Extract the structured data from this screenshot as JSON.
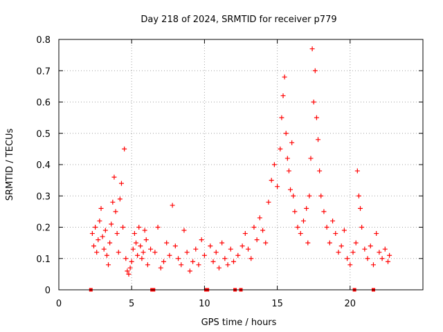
{
  "chart_data": {
    "type": "scatter",
    "title": "Day 218 of 2024, SRMTID for receiver p779",
    "xlabel": "GPS time / hours",
    "ylabel": "SRMTID / TECUs",
    "xlim": [
      0,
      25
    ],
    "ylim": [
      0,
      0.8
    ],
    "x_ticks": [
      0,
      5,
      10,
      15,
      20
    ],
    "x_tick_labels": [
      "0",
      "5",
      "10",
      "15",
      "20"
    ],
    "y_ticks": [
      0,
      0.1,
      0.2,
      0.3,
      0.4,
      0.5,
      0.6,
      0.7,
      0.8
    ],
    "y_tick_labels": [
      "0",
      "0.1",
      "0.2",
      "0.3",
      "0.4",
      "0.5",
      "0.6",
      "0.7",
      "0.8"
    ],
    "grid": true,
    "marker": "+",
    "series_color": "#ff0000",
    "baseline_markers_x": [
      2.2,
      6.4,
      6.5,
      10.1,
      10.2,
      12.1,
      12.5,
      20.3,
      21.6
    ],
    "series": [
      {
        "name": "SRMTID",
        "points": [
          [
            2.3,
            0.18
          ],
          [
            2.4,
            0.14
          ],
          [
            2.5,
            0.2
          ],
          [
            2.6,
            0.12
          ],
          [
            2.7,
            0.16
          ],
          [
            2.8,
            0.22
          ],
          [
            2.9,
            0.26
          ],
          [
            3.0,
            0.17
          ],
          [
            3.1,
            0.13
          ],
          [
            3.2,
            0.19
          ],
          [
            3.3,
            0.11
          ],
          [
            3.4,
            0.08
          ],
          [
            3.5,
            0.15
          ],
          [
            3.6,
            0.21
          ],
          [
            3.7,
            0.28
          ],
          [
            3.8,
            0.36
          ],
          [
            3.9,
            0.25
          ],
          [
            4.0,
            0.18
          ],
          [
            4.1,
            0.12
          ],
          [
            4.2,
            0.29
          ],
          [
            4.3,
            0.34
          ],
          [
            4.4,
            0.2
          ],
          [
            4.5,
            0.45
          ],
          [
            4.6,
            0.1
          ],
          [
            4.7,
            0.06
          ],
          [
            4.8,
            0.05
          ],
          [
            4.9,
            0.07
          ],
          [
            5.0,
            0.09
          ],
          [
            5.1,
            0.13
          ],
          [
            5.2,
            0.18
          ],
          [
            5.3,
            0.15
          ],
          [
            5.4,
            0.11
          ],
          [
            5.5,
            0.2
          ],
          [
            5.6,
            0.14
          ],
          [
            5.7,
            0.1
          ],
          [
            5.8,
            0.12
          ],
          [
            5.9,
            0.19
          ],
          [
            6.0,
            0.16
          ],
          [
            6.1,
            0.08
          ],
          [
            6.3,
            0.13
          ],
          [
            6.6,
            0.12
          ],
          [
            6.8,
            0.2
          ],
          [
            7.0,
            0.07
          ],
          [
            7.2,
            0.09
          ],
          [
            7.4,
            0.15
          ],
          [
            7.6,
            0.11
          ],
          [
            7.8,
            0.27
          ],
          [
            8.0,
            0.14
          ],
          [
            8.2,
            0.1
          ],
          [
            8.4,
            0.08
          ],
          [
            8.6,
            0.19
          ],
          [
            8.8,
            0.12
          ],
          [
            9.0,
            0.06
          ],
          [
            9.2,
            0.09
          ],
          [
            9.4,
            0.13
          ],
          [
            9.6,
            0.08
          ],
          [
            9.8,
            0.16
          ],
          [
            10.0,
            0.11
          ],
          [
            10.4,
            0.14
          ],
          [
            10.6,
            0.09
          ],
          [
            10.8,
            0.12
          ],
          [
            11.0,
            0.07
          ],
          [
            11.2,
            0.15
          ],
          [
            11.4,
            0.1
          ],
          [
            11.6,
            0.08
          ],
          [
            11.8,
            0.13
          ],
          [
            12.0,
            0.09
          ],
          [
            12.3,
            0.11
          ],
          [
            12.6,
            0.14
          ],
          [
            12.8,
            0.18
          ],
          [
            13.0,
            0.13
          ],
          [
            13.2,
            0.1
          ],
          [
            13.4,
            0.2
          ],
          [
            13.6,
            0.16
          ],
          [
            13.8,
            0.23
          ],
          [
            14.0,
            0.19
          ],
          [
            14.2,
            0.15
          ],
          [
            14.4,
            0.28
          ],
          [
            14.6,
            0.35
          ],
          [
            14.8,
            0.4
          ],
          [
            15.0,
            0.33
          ],
          [
            15.2,
            0.45
          ],
          [
            15.3,
            0.55
          ],
          [
            15.4,
            0.62
          ],
          [
            15.5,
            0.68
          ],
          [
            15.6,
            0.5
          ],
          [
            15.7,
            0.42
          ],
          [
            15.8,
            0.38
          ],
          [
            15.9,
            0.32
          ],
          [
            16.0,
            0.47
          ],
          [
            16.1,
            0.3
          ],
          [
            16.2,
            0.25
          ],
          [
            16.4,
            0.2
          ],
          [
            16.6,
            0.18
          ],
          [
            16.8,
            0.22
          ],
          [
            17.0,
            0.26
          ],
          [
            17.1,
            0.15
          ],
          [
            17.2,
            0.3
          ],
          [
            17.3,
            0.42
          ],
          [
            17.4,
            0.77
          ],
          [
            17.5,
            0.6
          ],
          [
            17.6,
            0.7
          ],
          [
            17.7,
            0.55
          ],
          [
            17.8,
            0.48
          ],
          [
            17.9,
            0.38
          ],
          [
            18.0,
            0.3
          ],
          [
            18.2,
            0.25
          ],
          [
            18.4,
            0.2
          ],
          [
            18.6,
            0.15
          ],
          [
            18.8,
            0.22
          ],
          [
            19.0,
            0.18
          ],
          [
            19.2,
            0.12
          ],
          [
            19.4,
            0.14
          ],
          [
            19.6,
            0.19
          ],
          [
            19.8,
            0.1
          ],
          [
            20.0,
            0.08
          ],
          [
            20.2,
            0.12
          ],
          [
            20.4,
            0.15
          ],
          [
            20.5,
            0.38
          ],
          [
            20.6,
            0.3
          ],
          [
            20.7,
            0.26
          ],
          [
            20.8,
            0.2
          ],
          [
            21.0,
            0.13
          ],
          [
            21.2,
            0.1
          ],
          [
            21.4,
            0.14
          ],
          [
            21.6,
            0.08
          ],
          [
            21.8,
            0.18
          ],
          [
            22.0,
            0.12
          ],
          [
            22.2,
            0.1
          ],
          [
            22.4,
            0.13
          ],
          [
            22.6,
            0.09
          ],
          [
            22.7,
            0.11
          ]
        ]
      }
    ]
  }
}
